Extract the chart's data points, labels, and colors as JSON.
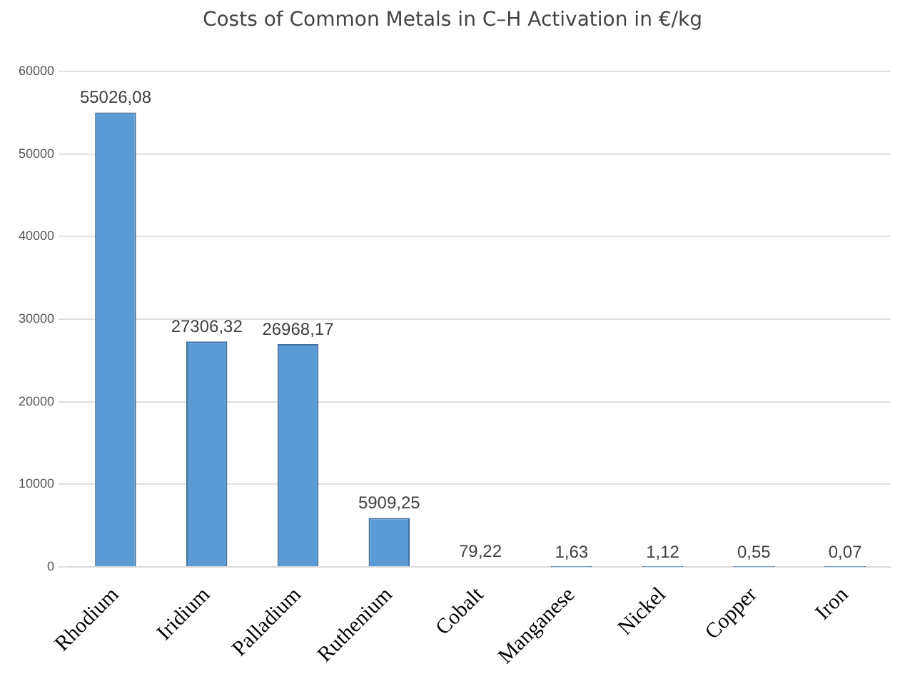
{
  "chart_data": {
    "type": "bar",
    "title": "Costs of Common Metals in C–H Activation in €/kg",
    "categories": [
      "Rhodium",
      "Iridium",
      "Palladium",
      "Ruthenium",
      "Cobalt",
      "Manganese",
      "Nickel",
      "Copper",
      "Iron"
    ],
    "values": [
      55026.08,
      27306.32,
      26968.17,
      5909.25,
      79.22,
      1.63,
      1.12,
      0.55,
      0.07
    ],
    "value_labels": [
      "55026,08",
      "27306,32",
      "26968,17",
      "5909,25",
      "79,22",
      "1,63",
      "1,12",
      "0,55",
      "0,07"
    ],
    "color": "#5b9bd5",
    "ylim": [
      0,
      60000
    ],
    "yticks": [
      0,
      10000,
      20000,
      30000,
      40000,
      50000,
      60000
    ],
    "grid": "y"
  }
}
